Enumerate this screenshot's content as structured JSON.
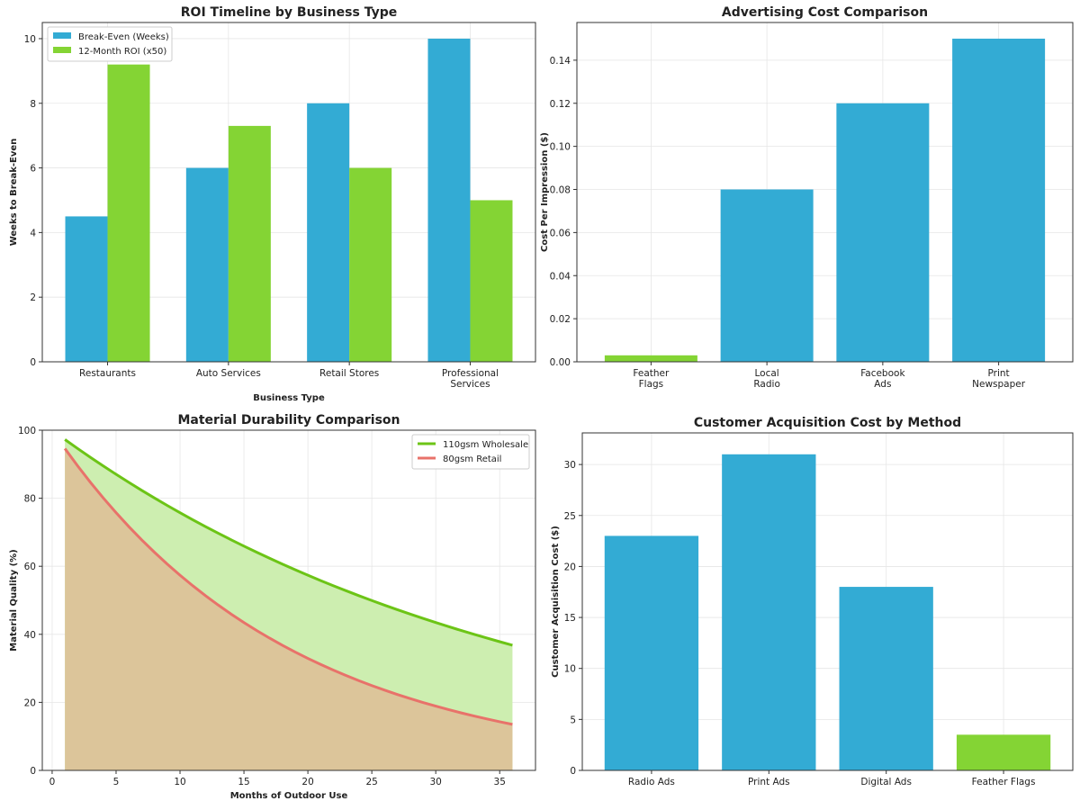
{
  "colors": {
    "blue": "#33abd4",
    "green": "#84d434",
    "green_line": "#6cc416",
    "red_line": "#e8726a",
    "green_fill": "#cdeeb0",
    "overlap_fill": "#dcc59a"
  },
  "chart_data": [
    {
      "type": "bar",
      "title": "ROI Timeline by Business Type",
      "xlabel": "Business Type",
      "ylabel": "Weeks to Break-Even",
      "categories": [
        "Restaurants",
        "Auto Services",
        "Retail Stores",
        "Professional\nServices"
      ],
      "series": [
        {
          "name": "Break-Even (Weeks)",
          "values": [
            4.5,
            6,
            8,
            10
          ],
          "color": "#33abd4"
        },
        {
          "name": "12-Month ROI (x50)",
          "values": [
            9.2,
            7.3,
            6,
            5
          ],
          "color": "#84d434"
        }
      ],
      "ylim": [
        0,
        10.5
      ],
      "yticks": [
        0,
        2,
        4,
        6,
        8,
        10
      ],
      "grid": true,
      "legend": "top-left"
    },
    {
      "type": "bar",
      "title": "Advertising Cost Comparison",
      "xlabel": "",
      "ylabel": "Cost Per Impression ($)",
      "categories": [
        "Feather\nFlags",
        "Local\nRadio",
        "Facebook\nAds",
        "Print\nNewspaper"
      ],
      "values": [
        0.003,
        0.08,
        0.12,
        0.15
      ],
      "bar_colors": [
        "#84d434",
        "#33abd4",
        "#33abd4",
        "#33abd4"
      ],
      "ylim": [
        0,
        0.1575
      ],
      "yticks": [
        "0.00",
        "0.02",
        "0.04",
        "0.06",
        "0.08",
        "0.10",
        "0.12",
        "0.14"
      ],
      "grid": true
    },
    {
      "type": "area",
      "title": "Material Durability Comparison",
      "xlabel": "Months of Outdoor Use",
      "ylabel": "Material Quality (%)",
      "x": [
        1,
        2,
        3,
        4,
        5,
        6,
        7,
        8,
        9,
        10,
        11,
        12,
        13,
        14,
        15,
        16,
        17,
        18,
        19,
        20,
        21,
        22,
        23,
        24,
        25,
        26,
        27,
        28,
        29,
        30,
        31,
        32,
        33,
        34,
        35,
        36
      ],
      "series": [
        {
          "name": "110gsm Wholesale",
          "color": "#6cc416",
          "values": [
            97.26,
            94.59,
            92.0,
            89.48,
            87.03,
            84.65,
            82.33,
            80.07,
            77.88,
            75.75,
            73.67,
            71.65,
            69.69,
            67.78,
            65.92,
            64.12,
            62.36,
            60.65,
            58.99,
            57.37,
            55.8,
            54.27,
            52.79,
            51.34,
            49.94,
            48.57,
            47.24,
            45.94,
            44.69,
            43.46,
            42.27,
            41.11,
            39.99,
            38.89,
            37.83,
            36.79
          ]
        },
        {
          "name": "80gsm Retail",
          "color": "#e8726a",
          "values": [
            94.59,
            89.48,
            84.65,
            80.07,
            75.75,
            71.65,
            67.78,
            64.12,
            60.65,
            57.37,
            54.27,
            51.34,
            48.57,
            45.94,
            43.46,
            41.11,
            38.89,
            36.79,
            34.8,
            32.92,
            31.14,
            29.46,
            27.87,
            26.36,
            24.94,
            23.59,
            22.31,
            21.11,
            19.97,
            18.89,
            17.87,
            16.9,
            15.99,
            15.12,
            14.31,
            13.53
          ]
        }
      ],
      "xlim": [
        -0.77,
        37.8
      ],
      "ylim": [
        0,
        100
      ],
      "xticks": [
        0,
        5,
        10,
        15,
        20,
        25,
        30,
        35
      ],
      "yticks": [
        0,
        20,
        40,
        60,
        80,
        100
      ],
      "grid": true,
      "legend": "top-right"
    },
    {
      "type": "bar",
      "title": "Customer Acquisition Cost by Method",
      "xlabel": "",
      "ylabel": "Customer Acquisition Cost ($)",
      "categories": [
        "Radio Ads",
        "Print Ads",
        "Digital Ads",
        "Feather Flags"
      ],
      "values": [
        23,
        31,
        18,
        3.5
      ],
      "bar_colors": [
        "#33abd4",
        "#33abd4",
        "#33abd4",
        "#84d434"
      ],
      "ylim": [
        0,
        33.1
      ],
      "yticks": [
        0,
        5,
        10,
        15,
        20,
        25,
        30
      ],
      "grid": true
    }
  ]
}
